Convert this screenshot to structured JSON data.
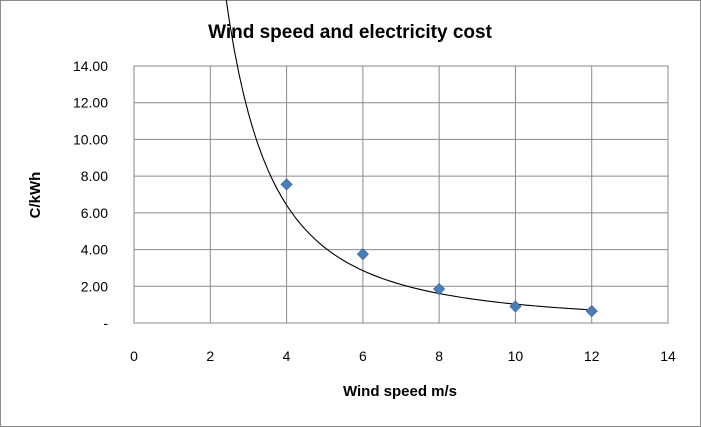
{
  "chart_data": {
    "type": "scatter",
    "title": "Wind speed and electricity cost",
    "xlabel": "Wind speed m/s",
    "ylabel": "C/kWh",
    "xlim": [
      0,
      14
    ],
    "ylim": [
      0,
      14
    ],
    "x_ticks": [
      0,
      2,
      4,
      6,
      8,
      10,
      12,
      14
    ],
    "y_ticks": [
      0,
      2,
      4,
      6,
      8,
      10,
      12,
      14
    ],
    "y_tick_labels": [
      "-",
      "2.00",
      "4.00",
      "6.00",
      "8.00",
      "10.00",
      "12.00",
      "14.00"
    ],
    "grid": true,
    "marker_color": "#4a7ebb",
    "series": [
      {
        "x": [
          4,
          6,
          8,
          10,
          12
        ],
        "y": [
          7.55,
          3.75,
          1.85,
          0.9,
          0.65
        ]
      }
    ],
    "trendline": {
      "type": "power",
      "a": 102.8,
      "b": -2.0,
      "x_range": [
        2,
        12
      ]
    }
  }
}
